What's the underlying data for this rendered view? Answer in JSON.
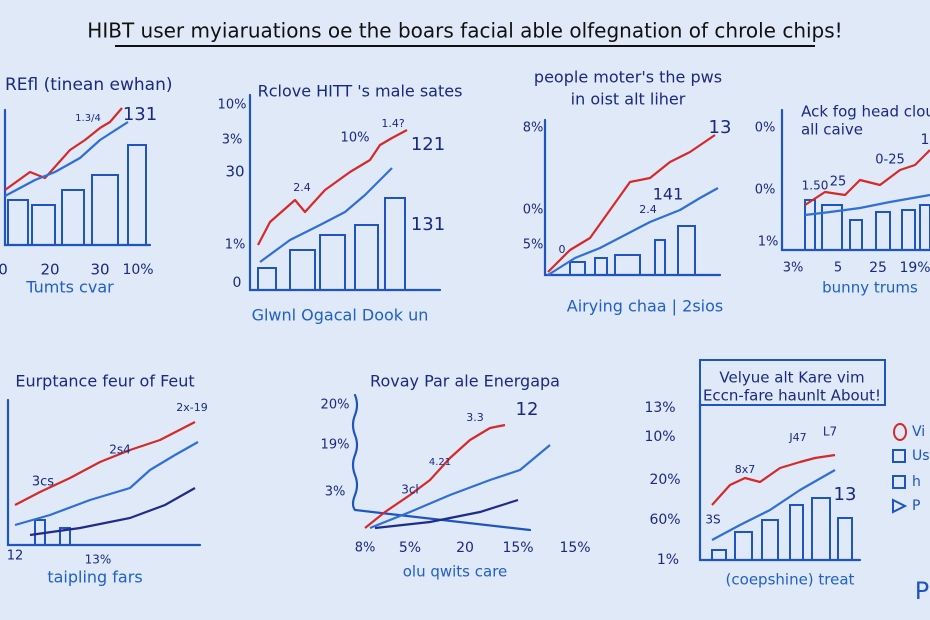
{
  "title": "HIBT user myiaruations oe the boars facial able olfegnation of chrole chips!",
  "panels": [
    {
      "title": [
        "REfl (tinean ewhan)"
      ],
      "labels": [
        "1.3/4",
        "131",
        "0",
        "20",
        "30",
        "10%",
        "Tumts cvar"
      ]
    },
    {
      "title": [
        "Rclove HITT 's male sates"
      ],
      "labels": [
        "10%",
        "3%",
        "30",
        "1%",
        "0",
        "10%",
        "1.4?",
        "121",
        "2.4",
        "131",
        "Glwnl Ogacal Dook un"
      ]
    },
    {
      "title": [
        "people moter's the pws",
        "in oist alt liher"
      ],
      "labels": [
        "8%",
        "0%",
        "5%",
        "13",
        "141",
        "2.4",
        "0",
        "Airying chaa | 2sios"
      ]
    },
    {
      "title": [
        "Ack fog head clou",
        "all caive"
      ],
      "labels": [
        "0%",
        "0%",
        "1%",
        "1.50",
        "25",
        "0-25",
        "1",
        "3%",
        "5",
        "25",
        "19%",
        "bunny trums"
      ]
    },
    {
      "title": [
        "Eurptance feur of Feut"
      ],
      "labels": [
        "3cs",
        "2s4",
        "2x-19",
        "12",
        "13%",
        "taipling fars"
      ]
    },
    {
      "title": [
        "Rovay Par ale Energapa"
      ],
      "labels": [
        "20%",
        "19%",
        "3%",
        "3cl",
        "4.21",
        "3.3",
        "12",
        "8%",
        "5%",
        "20",
        "15%",
        "15%",
        "olu qwits care"
      ]
    },
    {
      "title": [
        "Velyue alt Kare vim",
        "Eccn-fare haunlt About!"
      ],
      "labels": [
        "13%",
        "10%",
        "20%",
        "60%",
        "1%",
        "J47",
        "L7",
        "8x7",
        "3S",
        "13",
        "(coepshine) treat"
      ],
      "legend": [
        "Vi",
        "Us",
        "h",
        "P"
      ]
    }
  ],
  "corner_mark": "P"
}
